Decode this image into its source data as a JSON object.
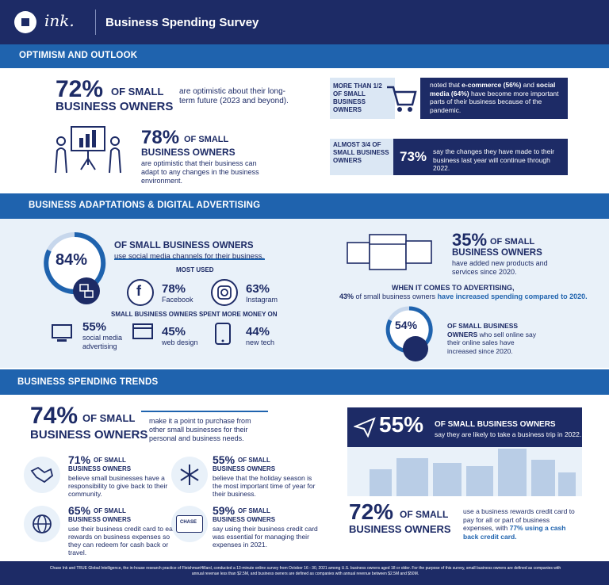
{
  "header": {
    "logo_script": "ink.",
    "title": "Business Spending Survey"
  },
  "sections": {
    "optimism": "OPTIMISM AND OUTLOOK",
    "adaptations": "BUSINESS ADAPTATIONS & DIGITAL ADVERTISING",
    "trends": "BUSINESS SPENDING TRENDS"
  },
  "optimism": {
    "stat72": {
      "value": "72%",
      "label1": "OF SMALL",
      "label2": "BUSINESS OWNERS",
      "desc": "are optimistic about their long-term future (2023 and beyond)."
    },
    "stat78": {
      "value": "78%",
      "label1": "OF SMALL",
      "label2": "BUSINESS OWNERS",
      "desc": "are optimistic that their business can adapt to any changes in the business environment."
    },
    "ecommerce": {
      "lead": "MORE THAN 1/2 OF SMALL BUSINESS OWNERS",
      "desc_a": "noted that ",
      "desc_b": "e-commerce (56%)",
      "desc_c": " and ",
      "desc_d": "social media (64%)",
      "desc_e": " have become more important parts of their business because of the pandemic."
    },
    "changes": {
      "lead": "ALMOST 3/4 OF SMALL BUSINESS OWNERS",
      "value": "73%",
      "desc": "say the changes they have made to their business last year will continue through 2022."
    }
  },
  "adaptations": {
    "social": {
      "value": "84%",
      "label": "OF SMALL BUSINESS OWNERS",
      "desc": "use social media channels for their business."
    },
    "most_used": "MOST USED",
    "facebook": {
      "value": "78%",
      "label": "Facebook",
      "glyph": "f"
    },
    "instagram": {
      "value": "63%",
      "label": "Instagram"
    },
    "spent_more": "SMALL BUSINESS OWNERS SPENT MORE MONEY ON",
    "ads": {
      "value": "55%",
      "label": "social media advertising"
    },
    "web": {
      "value": "45%",
      "label": "web design"
    },
    "tech": {
      "value": "44%",
      "label": "new tech"
    },
    "products": {
      "value": "35%",
      "label1": "OF SMALL",
      "label2": "BUSINESS OWNERS",
      "desc": "have added new products and services since 2020."
    },
    "advertising": {
      "title": "WHEN IT COMES TO ADVERTISING,",
      "value": "43%",
      "text": " of small business owners ",
      "highlight": "have increased spending compared to 2020."
    },
    "online": {
      "value": "54%",
      "desc_a": "OF SMALL BUSINESS OWNERS",
      "desc_b": " who sell online say their online sales have increased since 2020."
    }
  },
  "trends": {
    "stat74": {
      "value": "74%",
      "label1": "OF SMALL",
      "label2": "BUSINESS OWNERS",
      "desc": "make it a point to purchase from other small businesses for their personal and business needs."
    },
    "stat71": {
      "value": "71%",
      "label1": "OF SMALL",
      "label2": "BUSINESS OWNERS",
      "desc": "believe small businesses have a responsibility to give back to their community."
    },
    "stat55h": {
      "value": "55%",
      "label1": "OF SMALL",
      "label2": "BUSINESS OWNERS",
      "desc": "believe that the holiday season is the most important time of year for their business."
    },
    "stat65": {
      "value": "65%",
      "label1": "OF SMALL",
      "label2": "BUSINESS OWNERS",
      "desc": "use their business credit card to earn rewards on business expenses so they can redeem for cash back or travel."
    },
    "stat59": {
      "value": "59%",
      "label1": "OF SMALL",
      "label2": "BUSINESS OWNERS",
      "desc": "say using their business credit card was essential for managing their expenses in 2021.",
      "card_text": "CHASE"
    },
    "travel": {
      "value": "55%",
      "label": "OF SMALL BUSINESS OWNERS",
      "desc": "say they are likely to take a business trip in 2022."
    },
    "stat72": {
      "value": "72%",
      "label1": "OF SMALL",
      "label2": "BUSINESS OWNERS",
      "desc_a": "use a business rewards credit card to pay for all or part of business expenses, with ",
      "desc_b": "77% using a cash back credit card."
    }
  },
  "footer": {
    "text": "Chase Ink and TRUE Global Intelligence, the in-house research practice of FleishmanHillard, conducted a 13-minute online survey from October 16 - 30, 2021 among U.S. business owners aged 18 or older. For the purpose of this survey, small business owners are defined as companies with annual revenue less than $2.5M, and business owners are defined as companies with annual revenue between $2.5M and $50M."
  },
  "colors": {
    "navy": "#1d2b66",
    "blue": "#1f63ae",
    "light": "#e9f1f9"
  }
}
